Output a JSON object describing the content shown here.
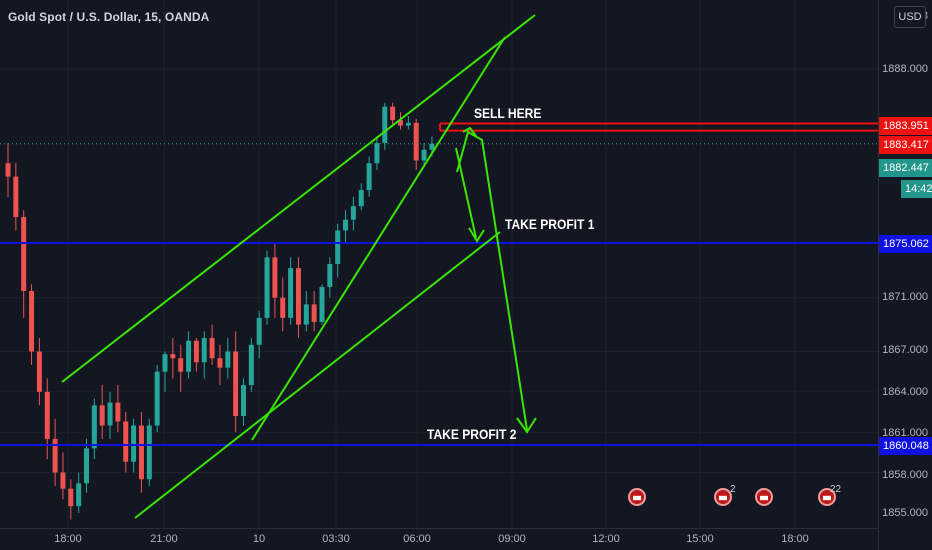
{
  "symbol": "Gold Spot / U.S. Dollar, 15, OANDA",
  "currency": "USD",
  "price_ticks": [
    "1888.000",
    "1871.000",
    "1867.000",
    "1864.000",
    "1861.000",
    "1858.000",
    "1855.000"
  ],
  "price_ticks_partial": [
    "18",
    "187"
  ],
  "time_labels": [
    "18:00",
    "21:00",
    "10",
    "03:30",
    "06:00",
    "09:00",
    "12:00",
    "15:00",
    "18:00"
  ],
  "price_labels": {
    "resist_top": "1883.951",
    "resist_bottom": "1883.417",
    "last_price": "1882.447",
    "countdown": "14:42",
    "tp1": "1875.062",
    "tp2": "1860.048"
  },
  "annotations": {
    "sell": "SELL HERE",
    "tp1": "TAKE PROFIT 1",
    "tp2": "TAKE PROFIT 2"
  },
  "event_badges": [
    {
      "icon": "us-flag-icon",
      "count": ""
    },
    {
      "icon": "us-flag-icon",
      "count": "2"
    },
    {
      "icon": "us-flag-icon",
      "count": ""
    },
    {
      "icon": "us-flag-icon",
      "count": "22"
    }
  ],
  "colors": {
    "background": "#131722",
    "up": "#26a69a",
    "down": "#ef5350",
    "trendline": "#39e600",
    "blue_level": "#1010e0",
    "red_level": "#ee1111"
  },
  "chart_data": {
    "type": "candlestick",
    "instrument": "XAUUSD",
    "timeframe": "15",
    "levels": [
      {
        "label": "1883.951",
        "price": 1883.951
      },
      {
        "label": "1883.417",
        "price": 1883.417
      },
      {
        "label": "1875.062",
        "price": 1875.062
      },
      {
        "label": "1860.048",
        "price": 1860.048
      }
    ],
    "last_price": 1882.447,
    "candles": [
      [
        1881.0,
        1882.5,
        1878.5,
        1880.0
      ],
      [
        1880.0,
        1881.0,
        1876.0,
        1877.0
      ],
      [
        1877.0,
        1877.5,
        1869.5,
        1871.5
      ],
      [
        1871.5,
        1872.0,
        1866.0,
        1867.0
      ],
      [
        1867.0,
        1868.0,
        1863.0,
        1864.0
      ],
      [
        1864.0,
        1865.0,
        1859.0,
        1860.5
      ],
      [
        1860.5,
        1862.0,
        1857.0,
        1858.0
      ],
      [
        1858.0,
        1859.5,
        1856.0,
        1856.8
      ],
      [
        1856.8,
        1857.5,
        1854.5,
        1855.5
      ],
      [
        1855.5,
        1858.0,
        1855.0,
        1857.2
      ],
      [
        1857.2,
        1860.5,
        1856.5,
        1859.8
      ],
      [
        1859.8,
        1863.5,
        1859.0,
        1863.0
      ],
      [
        1863.0,
        1864.5,
        1860.5,
        1861.5
      ],
      [
        1861.5,
        1864.0,
        1860.5,
        1863.2
      ],
      [
        1863.2,
        1864.5,
        1861.0,
        1861.8
      ],
      [
        1861.8,
        1862.5,
        1858.0,
        1858.8
      ],
      [
        1858.8,
        1862.0,
        1858.0,
        1861.5
      ],
      [
        1861.5,
        1862.5,
        1856.5,
        1857.5
      ],
      [
        1857.5,
        1862.0,
        1857.0,
        1861.5
      ],
      [
        1861.5,
        1866.0,
        1861.0,
        1865.5
      ],
      [
        1865.5,
        1867.0,
        1864.0,
        1866.8
      ],
      [
        1866.8,
        1868.0,
        1865.0,
        1866.5
      ],
      [
        1866.5,
        1867.5,
        1864.0,
        1865.5
      ],
      [
        1865.5,
        1868.5,
        1865.0,
        1867.8
      ],
      [
        1867.8,
        1868.0,
        1865.5,
        1866.2
      ],
      [
        1866.2,
        1868.5,
        1865.0,
        1868.0
      ],
      [
        1868.0,
        1869.0,
        1866.0,
        1866.5
      ],
      [
        1866.5,
        1867.5,
        1864.5,
        1865.8
      ],
      [
        1865.8,
        1868.0,
        1865.0,
        1867.0
      ],
      [
        1867.0,
        1868.5,
        1861.0,
        1862.2
      ],
      [
        1862.2,
        1865.0,
        1861.5,
        1864.5
      ],
      [
        1864.5,
        1868.0,
        1864.0,
        1867.5
      ],
      [
        1867.5,
        1870.0,
        1866.5,
        1869.5
      ],
      [
        1869.5,
        1874.5,
        1869.0,
        1874.0
      ],
      [
        1874.0,
        1875.0,
        1869.5,
        1871.0
      ],
      [
        1871.0,
        1872.5,
        1868.5,
        1869.5
      ],
      [
        1869.5,
        1874.0,
        1869.0,
        1873.2
      ],
      [
        1873.2,
        1874.0,
        1868.0,
        1869.0
      ],
      [
        1869.0,
        1871.5,
        1868.5,
        1870.5
      ],
      [
        1870.5,
        1871.5,
        1868.5,
        1869.2
      ],
      [
        1869.2,
        1872.0,
        1869.0,
        1871.8
      ],
      [
        1871.8,
        1874.0,
        1871.0,
        1873.5
      ],
      [
        1873.5,
        1876.5,
        1872.5,
        1876.0
      ],
      [
        1876.0,
        1877.5,
        1875.0,
        1876.8
      ],
      [
        1876.8,
        1878.5,
        1876.0,
        1877.8
      ],
      [
        1877.8,
        1879.5,
        1877.5,
        1879.0
      ],
      [
        1879.0,
        1881.5,
        1878.5,
        1881.0
      ],
      [
        1881.0,
        1883.0,
        1880.5,
        1882.5
      ],
      [
        1882.5,
        1885.5,
        1882.0,
        1885.2
      ],
      [
        1885.2,
        1885.5,
        1883.8,
        1884.2
      ],
      [
        1884.2,
        1884.8,
        1883.5,
        1883.8
      ],
      [
        1883.8,
        1884.5,
        1883.5,
        1884.0
      ],
      [
        1884.0,
        1884.3,
        1880.5,
        1881.2
      ],
      [
        1881.2,
        1882.5,
        1880.8,
        1882.0
      ],
      [
        1882.0,
        1883.0,
        1881.5,
        1882.447
      ]
    ]
  }
}
